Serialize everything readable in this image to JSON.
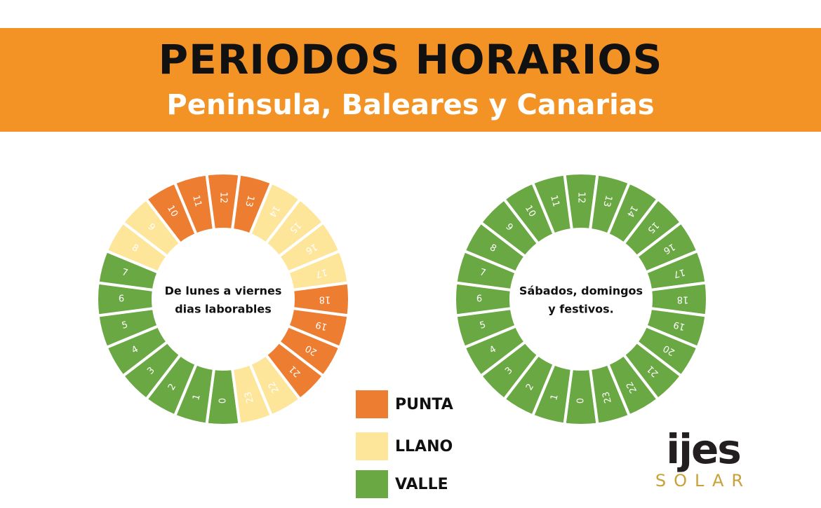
{
  "header": {
    "title": "PERIODOS HORARIOS",
    "subtitle": "Peninsula, Baleares y Canarias"
  },
  "colors": {
    "banner": "#f39325",
    "punta": "#ed7d31",
    "llano": "#fde59a",
    "valle": "#6aa844"
  },
  "wheels": [
    {
      "id": "weekday",
      "center_line1": "De lunes a viernes",
      "center_line2": "dias laborables",
      "hours": [
        "0",
        "1",
        "2",
        "3",
        "4",
        "5",
        "6",
        "7",
        "8",
        "9",
        "10",
        "11",
        "12",
        "13",
        "14",
        "15",
        "16",
        "17",
        "18",
        "19",
        "20",
        "21",
        "22",
        "23"
      ],
      "periods": [
        "valle",
        "valle",
        "valle",
        "valle",
        "valle",
        "valle",
        "valle",
        "valle",
        "llano",
        "llano",
        "punta",
        "punta",
        "punta",
        "punta",
        "llano",
        "llano",
        "llano",
        "llano",
        "punta",
        "punta",
        "punta",
        "punta",
        "llano",
        "llano"
      ]
    },
    {
      "id": "weekend",
      "center_line1": "Sábados, domingos",
      "center_line2": "y festivos.",
      "hours": [
        "0",
        "1",
        "2",
        "3",
        "4",
        "5",
        "6",
        "7",
        "8",
        "9",
        "10",
        "11",
        "12",
        "13",
        "14",
        "15",
        "16",
        "17",
        "18",
        "19",
        "20",
        "21",
        "22",
        "23"
      ],
      "periods": [
        "valle",
        "valle",
        "valle",
        "valle",
        "valle",
        "valle",
        "valle",
        "valle",
        "valle",
        "valle",
        "valle",
        "valle",
        "valle",
        "valle",
        "valle",
        "valle",
        "valle",
        "valle",
        "valle",
        "valle",
        "valle",
        "valle",
        "valle",
        "valle"
      ]
    }
  ],
  "legend": [
    {
      "label": "PUNTA",
      "period": "punta"
    },
    {
      "label": "LLANO",
      "period": "llano"
    },
    {
      "label": "VALLE",
      "period": "valle"
    }
  ],
  "logo": {
    "word": "ijes",
    "sub": "SOLAR"
  }
}
